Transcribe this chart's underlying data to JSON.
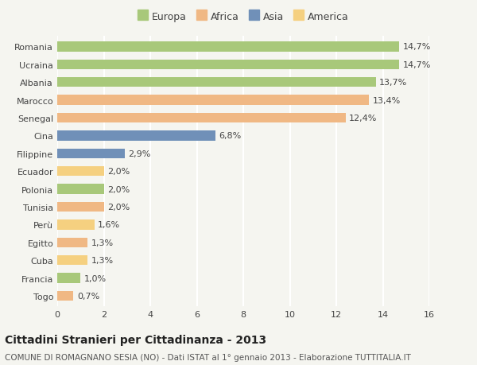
{
  "countries": [
    "Romania",
    "Ucraina",
    "Albania",
    "Marocco",
    "Senegal",
    "Cina",
    "Filippine",
    "Ecuador",
    "Polonia",
    "Tunisia",
    "Perù",
    "Egitto",
    "Cuba",
    "Francia",
    "Togo"
  ],
  "values": [
    14.7,
    14.7,
    13.7,
    13.4,
    12.4,
    6.8,
    2.9,
    2.0,
    2.0,
    2.0,
    1.6,
    1.3,
    1.3,
    1.0,
    0.7
  ],
  "labels": [
    "14,7%",
    "14,7%",
    "13,7%",
    "13,4%",
    "12,4%",
    "6,8%",
    "2,9%",
    "2,0%",
    "2,0%",
    "2,0%",
    "1,6%",
    "1,3%",
    "1,3%",
    "1,0%",
    "0,7%"
  ],
  "continents": [
    "Europa",
    "Europa",
    "Europa",
    "Africa",
    "Africa",
    "Asia",
    "Asia",
    "America",
    "Europa",
    "Africa",
    "America",
    "Africa",
    "America",
    "Europa",
    "Africa"
  ],
  "colors": {
    "Europa": "#a8c87a",
    "Africa": "#f0b884",
    "Asia": "#7090b8",
    "America": "#f5d080"
  },
  "legend_order": [
    "Europa",
    "Africa",
    "Asia",
    "America"
  ],
  "title": "Cittadini Stranieri per Cittadinanza - 2013",
  "subtitle": "COMUNE DI ROMAGNANO SESIA (NO) - Dati ISTAT al 1° gennaio 2013 - Elaborazione TUTTITALIA.IT",
  "xlim": [
    0,
    16
  ],
  "xticks": [
    0,
    2,
    4,
    6,
    8,
    10,
    12,
    14,
    16
  ],
  "background_color": "#f5f5f0",
  "grid_color": "#ffffff",
  "bar_height": 0.55,
  "title_fontsize": 10,
  "subtitle_fontsize": 7.5,
  "label_fontsize": 8,
  "tick_fontsize": 8,
  "legend_fontsize": 9
}
